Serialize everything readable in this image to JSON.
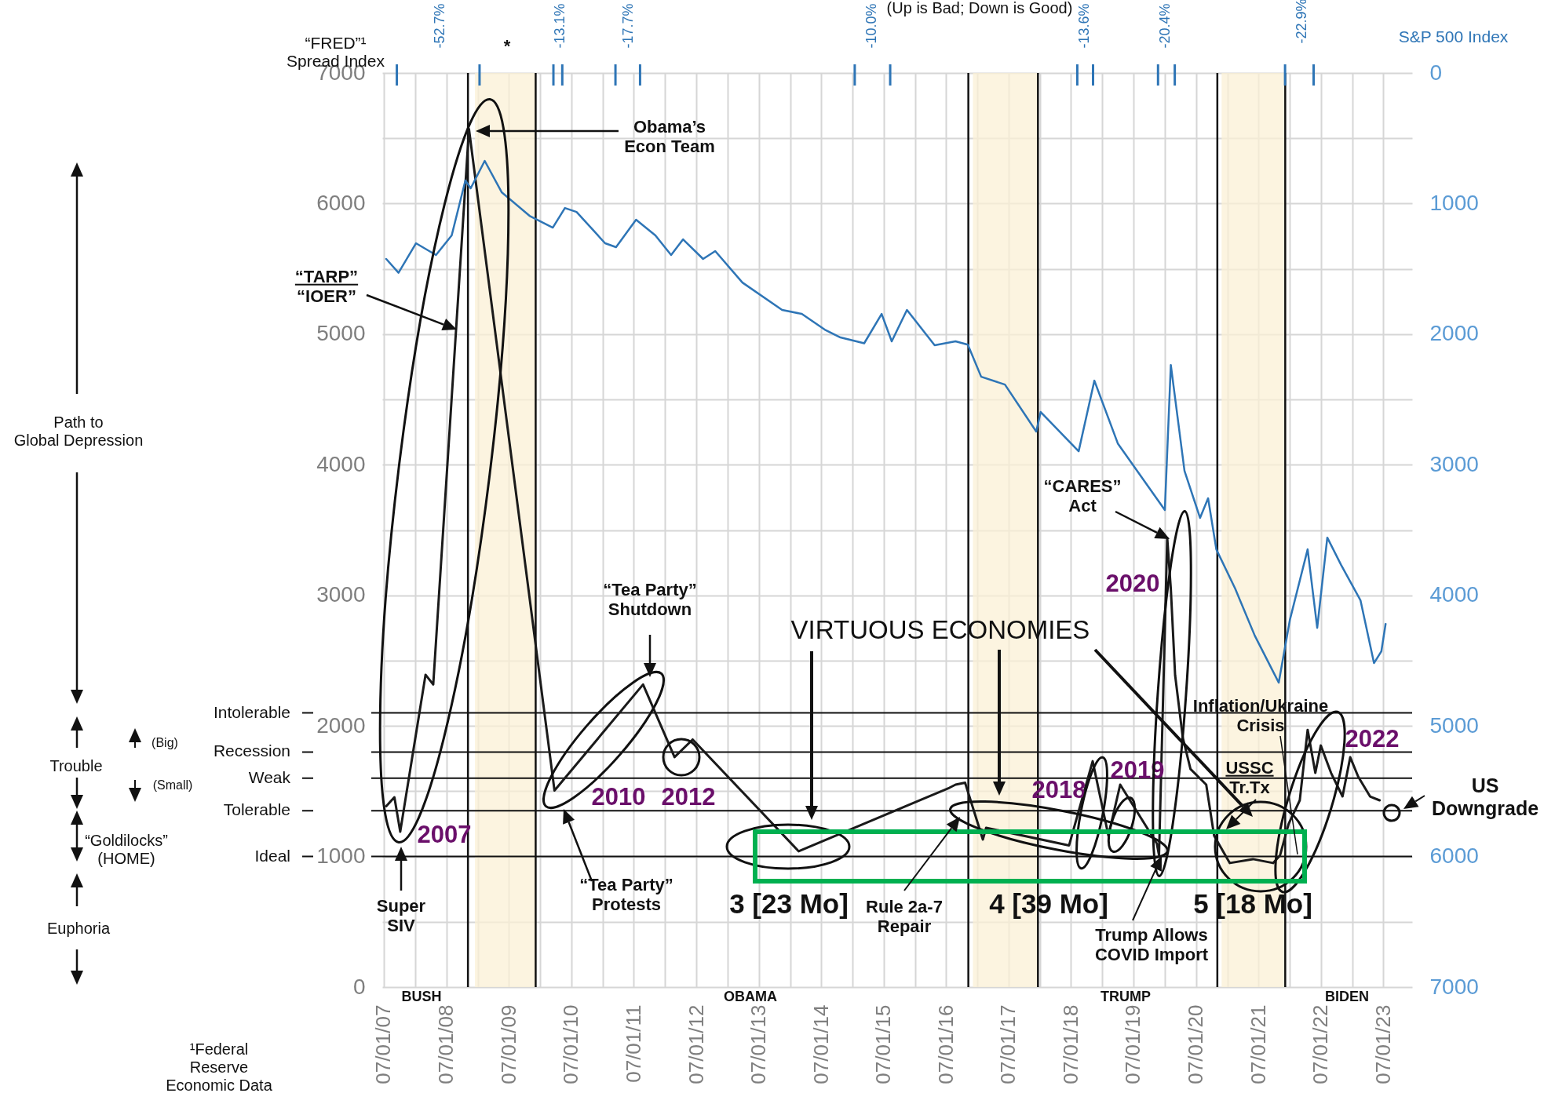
{
  "chart_data": {
    "type": "line",
    "title": "(Up is Bad; Down is Good)",
    "ylabel": "“FRED”¹ Spread Index",
    "y2label": "S&P 500 Index",
    "grid": true,
    "xlim": [
      "2007-06-22",
      "2023-12-17"
    ],
    "xticks": [
      {
        "value": "2007-07-01",
        "label": "07/01/07"
      },
      {
        "value": "2008-01-01",
        "label": null
      },
      {
        "value": "2008-07-01",
        "label": "07/01/08"
      },
      {
        "value": "2009-01-01",
        "label": null
      },
      {
        "value": "2009-07-01",
        "label": "07/01/09"
      },
      {
        "value": "2010-01-01",
        "label": null
      },
      {
        "value": "2010-07-01",
        "label": "07/01/10"
      },
      {
        "value": "2011-01-01",
        "label": null
      },
      {
        "value": "2011-07-01",
        "label": "07/01/11"
      },
      {
        "value": "2012-01-01",
        "label": null
      },
      {
        "value": "2012-07-01",
        "label": "07/01/12"
      },
      {
        "value": "2013-01-01",
        "label": null
      },
      {
        "value": "2013-07-01",
        "label": "07/01/13"
      },
      {
        "value": "2014-01-01",
        "label": null
      },
      {
        "value": "2014-07-01",
        "label": "07/01/14"
      },
      {
        "value": "2015-01-01",
        "label": null
      },
      {
        "value": "2015-07-01",
        "label": "07/01/15"
      },
      {
        "value": "2016-01-01",
        "label": null
      },
      {
        "value": "2016-07-01",
        "label": "07/01/16"
      },
      {
        "value": "2017-01-01",
        "label": null
      },
      {
        "value": "2017-07-01",
        "label": "07/01/17"
      },
      {
        "value": "2018-01-01",
        "label": null
      },
      {
        "value": "2018-07-01",
        "label": "07/01/18"
      },
      {
        "value": "2019-01-01",
        "label": null
      },
      {
        "value": "2019-07-01",
        "label": "07/01/19"
      },
      {
        "value": "2020-01-01",
        "label": null
      },
      {
        "value": "2020-07-01",
        "label": "07/01/20"
      },
      {
        "value": "2021-01-01",
        "label": null
      },
      {
        "value": "2021-07-01",
        "label": "07/01/21"
      },
      {
        "value": "2022-01-01",
        "label": null
      },
      {
        "value": "2022-07-01",
        "label": "07/01/22"
      },
      {
        "value": "2023-01-01",
        "label": null
      },
      {
        "value": "2023-07-01",
        "label": "07/01/23"
      }
    ],
    "ylim": [
      0,
      7000
    ],
    "yticks": [
      0,
      {
        "value": 500,
        "label": null
      },
      1000,
      {
        "value": 1500,
        "label": null
      },
      2000,
      {
        "value": 2500,
        "label": null
      },
      3000,
      {
        "value": 3500,
        "label": null
      },
      4000,
      {
        "value": 4500,
        "label": null
      },
      5000,
      {
        "value": 5500,
        "label": null
      },
      6000,
      {
        "value": 6500,
        "label": null
      },
      7000
    ],
    "y2lim": [
      7000,
      0
    ],
    "y2ticks": [
      0,
      1000,
      2000,
      3000,
      4000,
      5000,
      6000,
      7000
    ],
    "series": [
      {
        "color": "#1a1a1a",
        "x": [
          "2007-07-15",
          "2007-09-01",
          "2007-10-05",
          "2008-03-01",
          "2008-04-15",
          "2008-11-10",
          "2010-03-25",
          "2011-08-25",
          "2012-02-25",
          "2012-06-10",
          "2014-02-20",
          "2016-07-20",
          "2016-08-25",
          "2016-10-20",
          "2017-02-01",
          "2017-02-20",
          "2018-06-20",
          "2018-11-05",
          "2019-02-05",
          "2019-04-15",
          "2019-11-15",
          "2019-11-28",
          "2020-01-15",
          "2020-02-05",
          "2020-03-01",
          "2020-04-15",
          "2020-05-30",
          "2020-08-30",
          "2020-10-15",
          "2021-01-15",
          "2021-05-30",
          "2021-09-25",
          "2021-11-05",
          "2021-12-25",
          "2022-02-28",
          "2022-04-15",
          "2022-05-30",
          "2022-07-01",
          "2022-08-30",
          "2022-11-05",
          "2022-12-20",
          "2023-02-05",
          "2023-04-15",
          "2023-06-10"
        ],
        "values": [
          1385,
          1454,
          1190,
          2392,
          2317,
          6570,
          1505,
          2317,
          1761,
          1896,
          1040,
          1526,
          1550,
          1565,
          1130,
          1220,
          1085,
          1730,
          1160,
          1550,
          1100,
          1010,
          3440,
          3050,
          2390,
          1910,
          1670,
          1550,
          1160,
          950,
          980,
          950,
          1010,
          1250,
          1430,
          1970,
          1640,
          1850,
          1640,
          1460,
          1760,
          1610,
          1460,
          1430
        ]
      },
      {
        "color": "#2e75b6",
        "axis": "y2",
        "x": [
          "2007-07-15",
          "2007-09-25",
          "2008-01-05",
          "2008-05-01",
          "2008-08-01",
          "2008-10-20",
          "2008-11-20",
          "2009-02-10",
          "2009-05-20",
          "2009-10-30",
          "2010-03-15",
          "2010-05-25",
          "2010-08-01",
          "2011-01-15",
          "2011-03-20",
          "2011-07-15",
          "2011-11-05",
          "2012-02-05",
          "2012-04-15",
          "2012-08-10",
          "2012-10-20",
          "2013-03-28",
          "2013-11-15",
          "2014-03-10",
          "2014-07-22",
          "2014-10-22",
          "2015-03-10",
          "2015-06-20",
          "2015-08-18",
          "2015-11-15",
          "2016-04-25",
          "2016-08-25",
          "2016-11-05",
          "2017-01-22",
          "2017-06-10",
          "2017-12-10",
          "2018-01-05",
          "2018-08-15",
          "2018-11-15",
          "2019-04-01",
          "2020-01-01",
          "2020-02-05",
          "2020-04-25",
          "2020-07-25",
          "2020-09-10",
          "2020-10-28",
          "2021-02-15",
          "2021-06-10",
          "2021-10-05",
          "2021-10-28",
          "2022-01-01",
          "2022-04-15",
          "2022-06-10",
          "2022-08-08",
          "2022-10-28",
          "2023-02-18",
          "2023-05-08",
          "2023-06-20",
          "2023-07-15"
        ],
        "values": [
          1424,
          1530,
          1304,
          1394,
          1244,
          823,
          883,
          673,
          913,
          1094,
          1184,
          1034,
          1064,
          1304,
          1334,
          1124,
          1244,
          1394,
          1274,
          1424,
          1364,
          1605,
          1815,
          1845,
          1965,
          2025,
          2070,
          1845,
          2055,
          1815,
          2085,
          2055,
          2080,
          2326,
          2386,
          2746,
          2596,
          2897,
          2356,
          2837,
          3347,
          2236,
          3047,
          3407,
          3257,
          3648,
          3948,
          4309,
          4609,
          4669,
          4189,
          3648,
          4249,
          3558,
          3768,
          4038,
          4519,
          4429,
          4219
        ]
      }
    ],
    "ref_lines": [
      {
        "axis": "y",
        "value": 2100,
        "label": "Intolerable"
      },
      {
        "axis": "y",
        "value": 1800,
        "label": "Recession"
      },
      {
        "axis": "y",
        "value": 1600,
        "label": "Weak"
      },
      {
        "axis": "y",
        "value": 1350,
        "label": "Tolerable"
      },
      {
        "axis": "y",
        "value": 1000,
        "label": "Ideal"
      },
      {
        "axis": "x",
        "value": "2008-11-04"
      },
      {
        "axis": "x",
        "value": "2009-12-05"
      },
      {
        "axis": "x",
        "value": "2016-11-08"
      },
      {
        "axis": "x",
        "value": "2017-12-20"
      },
      {
        "axis": "x",
        "value": "2020-11-03"
      },
      {
        "axis": "x",
        "value": "2021-12-05"
      }
    ],
    "bands": [
      {
        "axis": "x",
        "from": "2008-12-15",
        "to": "2009-12-05",
        "color": "#fbf0d5"
      },
      {
        "axis": "x",
        "from": "2016-12-05",
        "to": "2017-12-20",
        "color": "#fbf0d5"
      },
      {
        "axis": "x",
        "from": "2020-11-28",
        "to": "2021-12-05",
        "color": "#fbf0d5"
      }
    ],
    "annotations": [
      "“TARP”\n“IOER”",
      "Obama’s\nEcon Team",
      "“Tea Party”\nShutdown",
      "2007",
      "2010",
      "2012",
      "Super\nSIV",
      "“Tea Party”\nProtests",
      "VIRTUOUS ECONOMIES",
      "3 [23 Mo]",
      "Rule 2a-7\nRepair",
      "4 [39 Mo]",
      "Trump Allows\nCOVID Import",
      "5 [18 Mo]",
      "“CARES”\nAct",
      "2020",
      "2018",
      "2019",
      {
        "text": "Inflation/Ukraine\nCrisis",
        "x": "2022-02-15",
        "y": 1016
      },
      "USSC\nTr.Tx",
      "2022",
      "US\nDowngrade",
      "*",
      "BUSH",
      "OBAMA",
      "TRUMP",
      "BIDEN",
      "Path to\nGlobal Depression",
      "Trouble",
      "(Big)",
      "(Small)",
      "“Goldilocks”\n(HOME)",
      "Euphoria",
      "¹Federal\nReserve\nEconomic Data",
      "-52.7%",
      "-13.1%",
      "-17.7%",
      "-10.0%",
      "-13.6%",
      "-20.4%",
      "-22.9%"
    ]
  }
}
